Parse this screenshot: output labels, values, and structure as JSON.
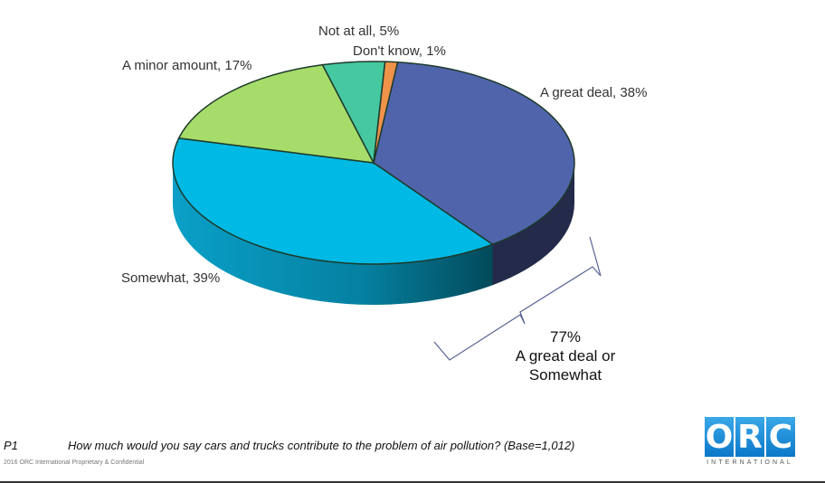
{
  "chart_data": {
    "type": "pie",
    "style": "3d",
    "title": "",
    "categories": [
      "A great deal",
      "Somewhat",
      "A minor amount",
      "Not at all",
      "Don't know"
    ],
    "values": [
      38,
      39,
      17,
      5,
      1
    ],
    "unit": "%",
    "colors": [
      "#5064ab",
      "#00b9e4",
      "#a6dc6a",
      "#46c8a0",
      "#f0934a"
    ],
    "labels": [
      "A great deal, 38%",
      "Somewhat, 39%",
      "A minor amount, 17%",
      "Not at all, 5%",
      "Don't know, 1%"
    ],
    "annotation": {
      "value": "77%",
      "text": "A great deal or Somewhat",
      "line1": "77%",
      "line2": "A great deal or",
      "line3": "Somewhat"
    },
    "legend": "none (data labels)"
  },
  "footer": {
    "question_id": "P1",
    "question": "How much would you say cars and trucks contribute to the problem of air pollution? (Base=1,012)",
    "copyright": "2016 ORC International Proprietary & Confidential"
  },
  "logo": {
    "letters": [
      "O",
      "R",
      "C"
    ],
    "subtitle": "INTERNATIONAL"
  }
}
